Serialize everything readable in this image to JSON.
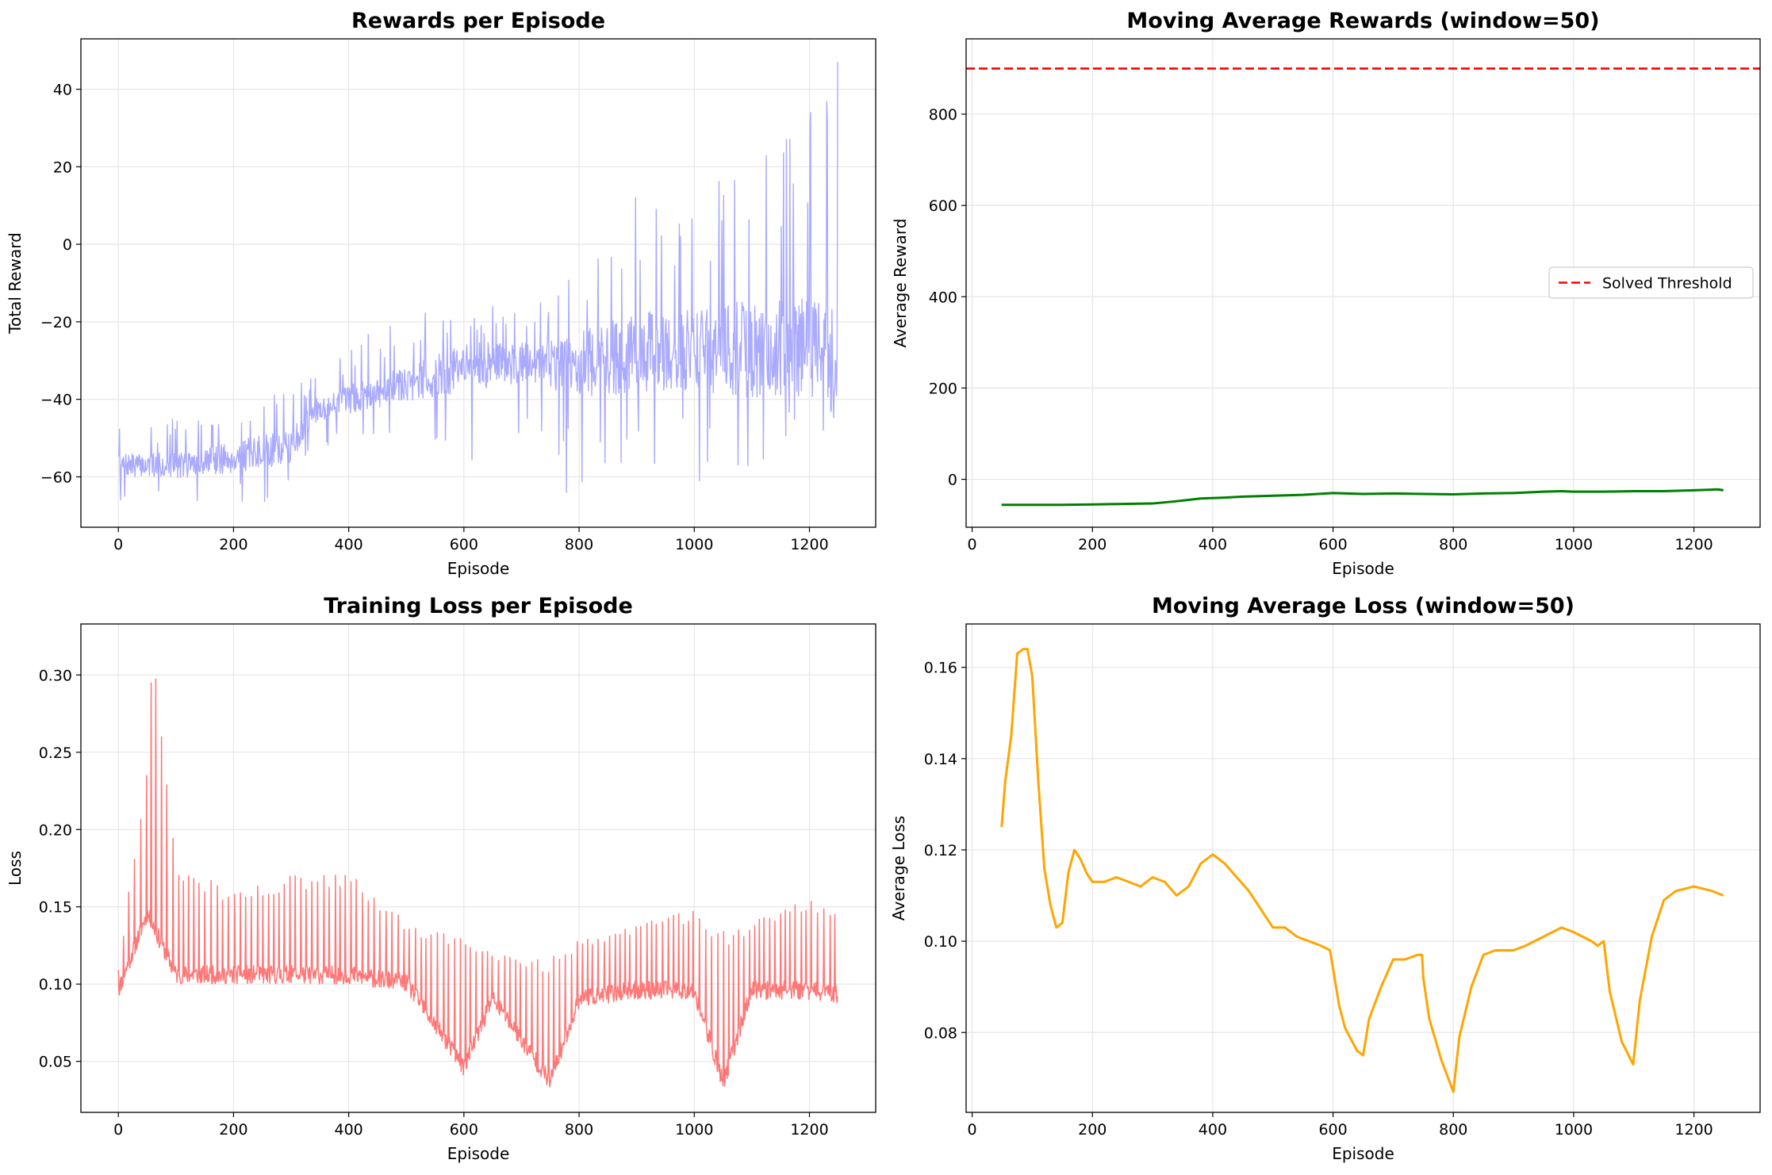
{
  "figure": {
    "background": "#ffffff"
  },
  "chart_data": [
    {
      "type": "line",
      "title": "Rewards per Episode",
      "xlabel": "Episode",
      "ylabel": "Total Reward",
      "xlim": [
        -65,
        1315
      ],
      "ylim": [
        -73,
        53
      ],
      "xticks": [
        0,
        200,
        400,
        600,
        800,
        1000,
        1200
      ],
      "yticks": [
        -60,
        -40,
        -20,
        0,
        20,
        40
      ],
      "xtick_labels": [
        "0",
        "200",
        "400",
        "600",
        "800",
        "1000",
        "1200"
      ],
      "ytick_labels": [
        "−60",
        "−40",
        "−20",
        "0",
        "20",
        "40"
      ],
      "grid": true,
      "series": [
        {
          "color": "#aaaaff",
          "line_width": 1.4,
          "episodes": [
            0,
            1249
          ],
          "approx_trend": {
            "x": [
              0,
              100,
              200,
              300,
              340,
              400,
              500,
              600,
              700,
              800,
              900,
              1000,
              1100,
              1200,
              1249
            ],
            "y": [
              -57,
              -57,
              -55,
              -52,
              -43,
              -40,
              -36,
              -32,
              -30,
              -31,
              -28,
              -27,
              -27,
              -26,
              -31
            ]
          },
          "approx_range": {
            "x": [
              0,
              100,
              200,
              300,
              340,
              400,
              500,
              600,
              700,
              800,
              900,
              1000,
              1100,
              1200,
              1249
            ],
            "low": [
              -66,
              -67,
              -67,
              -67,
              -55,
              -50,
              -48,
              -58,
              -55,
              -64,
              -57,
              -61,
              -57,
              -54,
              -54
            ],
            "high": [
              -47,
              -45,
              -40,
              -37,
              -34,
              -26,
              -18,
              -16,
              -15,
              -8,
              12,
              11,
              27,
              34,
              47
            ]
          },
          "notable_points": [
            {
              "x": 778,
              "y": -64
            },
            {
              "x": 898,
              "y": 12
            },
            {
              "x": 1009,
              "y": -61
            },
            {
              "x": 1160,
              "y": 27
            },
            {
              "x": 1202,
              "y": 34
            },
            {
              "x": 1249,
              "y": 47
            }
          ]
        }
      ]
    },
    {
      "type": "line",
      "title": "Moving Average Rewards (window=50)",
      "xlabel": "Episode",
      "ylabel": "Average Reward",
      "xlim": [
        -10,
        1310
      ],
      "ylim": [
        -105,
        965
      ],
      "xticks": [
        0,
        200,
        400,
        600,
        800,
        1000,
        1200
      ],
      "yticks": [
        0,
        200,
        400,
        600,
        800
      ],
      "xtick_labels": [
        "0",
        "200",
        "400",
        "600",
        "800",
        "1000",
        "1200"
      ],
      "ytick_labels": [
        "0",
        "200",
        "400",
        "600",
        "800"
      ],
      "grid": true,
      "legend": {
        "placement": "center-right",
        "entries": [
          "Solved Threshold"
        ]
      },
      "hline": {
        "y": 900,
        "name": "Solved Threshold",
        "color": "#ff0000",
        "style": "dashed"
      },
      "series": [
        {
          "color": "#008000",
          "line_width": 3,
          "x": [
            49,
            100,
            150,
            200,
            250,
            300,
            340,
            380,
            420,
            450,
            500,
            550,
            600,
            650,
            700,
            750,
            800,
            850,
            900,
            950,
            980,
            1000,
            1050,
            1100,
            1150,
            1200,
            1240,
            1249
          ],
          "y": [
            -56,
            -56,
            -56,
            -55,
            -54,
            -53,
            -48,
            -42,
            -40,
            -38,
            -36,
            -34,
            -30,
            -32,
            -31,
            -32,
            -33,
            -31,
            -30,
            -27,
            -26,
            -27,
            -27,
            -26,
            -26,
            -24,
            -22,
            -24
          ]
        }
      ]
    },
    {
      "type": "line",
      "title": "Training Loss per Episode",
      "xlabel": "Episode",
      "ylabel": "Loss",
      "xlim": [
        -65,
        1315
      ],
      "ylim": [
        0.017,
        0.333
      ],
      "xticks": [
        0,
        200,
        400,
        600,
        800,
        1000,
        1200
      ],
      "yticks": [
        0.05,
        0.1,
        0.15,
        0.2,
        0.25,
        0.3
      ],
      "xtick_labels": [
        "0",
        "200",
        "400",
        "600",
        "800",
        "1000",
        "1200"
      ],
      "ytick_labels": [
        "0.05",
        "0.10",
        "0.15",
        "0.20",
        "0.25",
        "0.30"
      ],
      "grid": true,
      "series": [
        {
          "color": "#ff7777",
          "line_width": 1.5,
          "episodes": [
            0,
            1249
          ],
          "approx_baseline": {
            "x": [
              0,
              50,
              100,
              150,
              200,
              300,
              400,
              500,
              600,
              650,
              750,
              800,
              900,
              1000,
              1050,
              1100,
              1200,
              1249
            ],
            "y": [
              0.09,
              0.14,
              0.1,
              0.1,
              0.1,
              0.1,
              0.1,
              0.095,
              0.04,
              0.085,
              0.031,
              0.085,
              0.09,
              0.09,
              0.03,
              0.09,
              0.09,
              0.087
            ]
          },
          "approx_peaks": {
            "x": [
              0,
              50,
              60,
              100,
              150,
              200,
              300,
              400,
              500,
              600,
              650,
              750,
              800,
              900,
              1000,
              1050,
              1100,
              1200,
              1249
            ],
            "y": [
              0.11,
              0.25,
              0.32,
              0.18,
              0.17,
              0.16,
              0.17,
              0.175,
              0.14,
              0.13,
              0.12,
              0.12,
              0.13,
              0.14,
              0.148,
              0.138,
              0.14,
              0.155,
              0.145
            ]
          }
        }
      ]
    },
    {
      "type": "line",
      "title": "Moving Average Loss (window=50)",
      "xlabel": "Episode",
      "ylabel": "Average Loss",
      "xlim": [
        -10,
        1310
      ],
      "ylim": [
        0.0625,
        0.1695
      ],
      "xticks": [
        0,
        200,
        400,
        600,
        800,
        1000,
        1200
      ],
      "yticks": [
        0.08,
        0.1,
        0.12,
        0.14,
        0.16
      ],
      "xtick_labels": [
        "0",
        "200",
        "400",
        "600",
        "800",
        "1000",
        "1200"
      ],
      "ytick_labels": [
        "0.08",
        "0.10",
        "0.12",
        "0.14",
        "0.16"
      ],
      "grid": true,
      "series": [
        {
          "color": "#ffa500",
          "line_width": 3,
          "x": [
            49,
            55,
            65,
            75,
            85,
            92,
            100,
            110,
            120,
            130,
            140,
            150,
            160,
            170,
            180,
            190,
            200,
            220,
            240,
            260,
            280,
            300,
            320,
            340,
            360,
            380,
            400,
            420,
            440,
            460,
            480,
            500,
            520,
            540,
            560,
            580,
            595,
            600,
            610,
            620,
            640,
            650,
            660,
            680,
            700,
            720,
            740,
            748,
            750,
            760,
            780,
            800,
            810,
            830,
            850,
            870,
            900,
            920,
            950,
            980,
            1000,
            1030,
            1040,
            1050,
            1060,
            1080,
            1099,
            1110,
            1130,
            1150,
            1170,
            1200,
            1230,
            1249
          ],
          "y": [
            0.125,
            0.135,
            0.145,
            0.163,
            0.164,
            0.164,
            0.158,
            0.135,
            0.116,
            0.108,
            0.103,
            0.104,
            0.115,
            0.12,
            0.118,
            0.115,
            0.113,
            0.113,
            0.114,
            0.113,
            0.112,
            0.114,
            0.113,
            0.11,
            0.112,
            0.117,
            0.119,
            0.117,
            0.114,
            0.111,
            0.107,
            0.103,
            0.103,
            0.101,
            0.1,
            0.099,
            0.098,
            0.094,
            0.086,
            0.081,
            0.076,
            0.075,
            0.083,
            0.09,
            0.096,
            0.096,
            0.097,
            0.097,
            0.092,
            0.083,
            0.074,
            0.067,
            0.079,
            0.09,
            0.097,
            0.098,
            0.098,
            0.099,
            0.101,
            0.103,
            0.102,
            0.1,
            0.099,
            0.1,
            0.089,
            0.078,
            0.073,
            0.087,
            0.101,
            0.109,
            0.111,
            0.112,
            0.111,
            0.11
          ]
        }
      ]
    }
  ]
}
